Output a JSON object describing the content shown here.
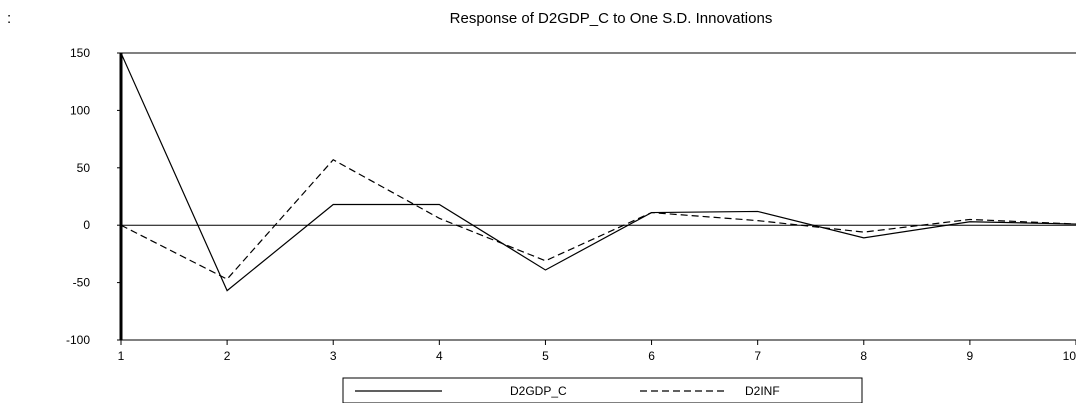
{
  "corner_mark": ":",
  "chart_data": {
    "type": "line",
    "title": "Response of D2GDP_C to One S.D. Innovations",
    "xlabel": "",
    "ylabel": "",
    "x": [
      1,
      2,
      3,
      4,
      5,
      6,
      7,
      8,
      9,
      10
    ],
    "x_tick_labels": [
      "1",
      "2",
      "3",
      "4",
      "5",
      "6",
      "7",
      "8",
      "9",
      "10"
    ],
    "y_tick_values": [
      150,
      100,
      50,
      0,
      -50,
      -100
    ],
    "y_tick_labels": [
      "150",
      "100",
      "50",
      "0",
      "-50",
      "-100"
    ],
    "xlim": [
      1,
      10
    ],
    "ylim": [
      -100,
      150
    ],
    "grid": false,
    "zero_line": true,
    "legend_position": "bottom-center",
    "series": [
      {
        "name": "D2GDP_C",
        "style": "solid",
        "color": "#000000",
        "values": [
          150,
          -57,
          18,
          18,
          -39,
          11,
          12,
          -11,
          3,
          1
        ]
      },
      {
        "name": "D2INF",
        "style": "dashed",
        "color": "#000000",
        "values": [
          0,
          -47,
          57,
          6,
          -31,
          11,
          4,
          -6,
          5,
          1
        ]
      }
    ]
  }
}
